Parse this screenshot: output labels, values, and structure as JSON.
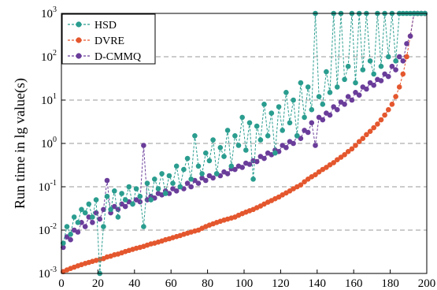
{
  "chart_data": {
    "type": "scatter",
    "title": "",
    "xlabel": "",
    "ylabel": "Run time in lg value(s)",
    "xlim": [
      0,
      200
    ],
    "ylim": [
      0.001,
      1000
    ],
    "yscale": "log",
    "x_ticks": [
      "0",
      "20",
      "40",
      "60",
      "80",
      "100",
      "120",
      "140",
      "160",
      "180",
      "200"
    ],
    "y_ticks": [
      {
        "base": "10",
        "exp": "-3",
        "value": 0.001
      },
      {
        "base": "10",
        "exp": "-2",
        "value": 0.01
      },
      {
        "base": "10",
        "exp": "-1",
        "value": 0.1
      },
      {
        "base": "10",
        "exp": "0",
        "value": 1
      },
      {
        "base": "10",
        "exp": "1",
        "value": 10
      },
      {
        "base": "10",
        "exp": "2",
        "value": 100
      },
      {
        "base": "10",
        "exp": "3",
        "value": 1000
      }
    ],
    "grid": "horizontal dashed",
    "legend_position": "top-left",
    "series": [
      {
        "name": "HSD",
        "color": "#2a9d8f",
        "x": [
          1,
          3,
          5,
          7,
          9,
          11,
          13,
          15,
          17,
          19,
          21,
          23,
          25,
          27,
          29,
          31,
          33,
          35,
          37,
          39,
          41,
          43,
          45,
          47,
          49,
          51,
          53,
          55,
          57,
          59,
          61,
          63,
          65,
          67,
          69,
          71,
          73,
          75,
          77,
          79,
          81,
          83,
          85,
          87,
          89,
          91,
          93,
          95,
          97,
          99,
          101,
          103,
          105,
          107,
          109,
          111,
          113,
          115,
          117,
          119,
          121,
          123,
          125,
          127,
          129,
          131,
          133,
          135,
          137,
          139,
          141,
          143,
          145,
          147,
          149,
          151,
          153,
          155,
          157,
          159,
          161,
          163,
          165,
          167,
          169,
          171,
          173,
          175,
          177,
          179,
          181,
          183,
          185,
          187,
          189,
          191,
          193,
          195,
          197,
          199
        ],
        "y": [
          0.005,
          0.012,
          0.008,
          0.02,
          0.015,
          0.03,
          0.025,
          0.04,
          0.02,
          0.05,
          0.0009,
          0.012,
          0.06,
          0.03,
          0.08,
          0.02,
          0.07,
          0.05,
          0.1,
          0.04,
          0.09,
          0.06,
          0.012,
          0.12,
          0.05,
          0.15,
          0.09,
          0.2,
          0.07,
          0.18,
          0.12,
          0.3,
          0.1,
          0.25,
          0.45,
          0.15,
          1.5,
          0.3,
          0.2,
          0.6,
          0.4,
          1.2,
          0.2,
          0.8,
          0.5,
          2,
          0.3,
          1.5,
          0.9,
          4,
          0.7,
          3,
          0.15,
          2.5,
          1.2,
          8,
          1.5,
          5,
          0.6,
          7,
          2,
          15,
          3,
          10,
          1.5,
          25,
          4,
          20,
          6,
          1000,
          12,
          8,
          45,
          15,
          1000,
          20,
          1000,
          30,
          60,
          1000,
          25,
          1000,
          50,
          1000,
          80,
          40,
          1000,
          60,
          1000,
          100,
          1000,
          80,
          1000,
          1000,
          1000,
          1000,
          1000,
          1000,
          1000,
          1000
        ]
      },
      {
        "name": "DVRE",
        "color": "#e4572e",
        "x": [
          1,
          3,
          5,
          7,
          9,
          11,
          13,
          15,
          17,
          19,
          21,
          23,
          25,
          27,
          29,
          31,
          33,
          35,
          37,
          39,
          41,
          43,
          45,
          47,
          49,
          51,
          53,
          55,
          57,
          59,
          61,
          63,
          65,
          67,
          69,
          71,
          73,
          75,
          77,
          79,
          81,
          83,
          85,
          87,
          89,
          91,
          93,
          95,
          97,
          99,
          101,
          103,
          105,
          107,
          109,
          111,
          113,
          115,
          117,
          119,
          121,
          123,
          125,
          127,
          129,
          131,
          133,
          135,
          137,
          139,
          141,
          143,
          145,
          147,
          149,
          151,
          153,
          155,
          157,
          159,
          161,
          163,
          165,
          167,
          169,
          171,
          173,
          175,
          177,
          179,
          181,
          183,
          185,
          187,
          189,
          191,
          193,
          195,
          197,
          199
        ],
        "y": [
          0.0011,
          0.0012,
          0.0013,
          0.0014,
          0.0015,
          0.0016,
          0.0017,
          0.0018,
          0.0019,
          0.002,
          0.0021,
          0.0022,
          0.0024,
          0.0025,
          0.0027,
          0.0028,
          0.003,
          0.0032,
          0.0034,
          0.0036,
          0.0038,
          0.004,
          0.0042,
          0.0045,
          0.0048,
          0.005,
          0.0053,
          0.0056,
          0.006,
          0.0063,
          0.0067,
          0.0071,
          0.0075,
          0.008,
          0.0085,
          0.009,
          0.0095,
          0.01,
          0.011,
          0.012,
          0.013,
          0.014,
          0.015,
          0.016,
          0.017,
          0.018,
          0.019,
          0.02,
          0.022,
          0.024,
          0.026,
          0.028,
          0.03,
          0.033,
          0.036,
          0.04,
          0.044,
          0.048,
          0.053,
          0.058,
          0.065,
          0.072,
          0.08,
          0.09,
          0.1,
          0.11,
          0.13,
          0.15,
          0.17,
          0.19,
          0.22,
          0.25,
          0.28,
          0.32,
          0.36,
          0.42,
          0.48,
          0.55,
          0.65,
          0.75,
          0.9,
          1.1,
          1.3,
          1.6,
          1.9,
          2.3,
          2.8,
          3.5,
          4.5,
          6,
          8,
          12,
          20,
          40,
          100,
          300,
          1000,
          1000,
          1000,
          1000
        ]
      },
      {
        "name": "D-CMMQ",
        "color": "#6a3d9a",
        "x": [
          1,
          3,
          5,
          7,
          9,
          11,
          13,
          15,
          17,
          19,
          21,
          23,
          25,
          27,
          29,
          31,
          33,
          35,
          37,
          39,
          41,
          43,
          45,
          47,
          49,
          51,
          53,
          55,
          57,
          59,
          61,
          63,
          65,
          67,
          69,
          71,
          73,
          75,
          77,
          79,
          81,
          83,
          85,
          87,
          89,
          91,
          93,
          95,
          97,
          99,
          101,
          103,
          105,
          107,
          109,
          111,
          113,
          115,
          117,
          119,
          121,
          123,
          125,
          127,
          129,
          131,
          133,
          135,
          137,
          139,
          141,
          143,
          145,
          147,
          149,
          151,
          153,
          155,
          157,
          159,
          161,
          163,
          165,
          167,
          169,
          171,
          173,
          175,
          177,
          179,
          181,
          183,
          185,
          187,
          189,
          191,
          193,
          195,
          197,
          199
        ],
        "y": [
          0.004,
          0.007,
          0.006,
          0.01,
          0.009,
          0.015,
          0.012,
          0.02,
          0.015,
          0.025,
          0.018,
          0.03,
          0.14,
          0.025,
          0.035,
          0.03,
          0.04,
          0.035,
          0.045,
          0.04,
          0.05,
          0.045,
          0.9,
          0.05,
          0.06,
          0.055,
          0.07,
          0.065,
          0.08,
          0.07,
          0.09,
          0.08,
          0.1,
          0.09,
          0.12,
          0.1,
          0.14,
          0.12,
          0.16,
          0.14,
          0.18,
          0.16,
          0.2,
          0.18,
          0.22,
          0.2,
          0.26,
          0.25,
          0.3,
          0.28,
          0.35,
          0.33,
          0.4,
          0.38,
          0.5,
          0.45,
          0.6,
          0.55,
          0.7,
          0.65,
          0.9,
          0.8,
          1.1,
          1,
          1.5,
          1.3,
          2,
          1.8,
          3,
          0.9,
          4,
          3.5,
          5,
          4.5,
          7,
          6,
          9,
          8,
          12,
          10,
          15,
          13,
          20,
          18,
          25,
          22,
          30,
          28,
          40,
          35,
          60,
          50,
          100,
          80,
          200,
          300,
          1000,
          1000,
          1000,
          1000
        ]
      }
    ]
  }
}
